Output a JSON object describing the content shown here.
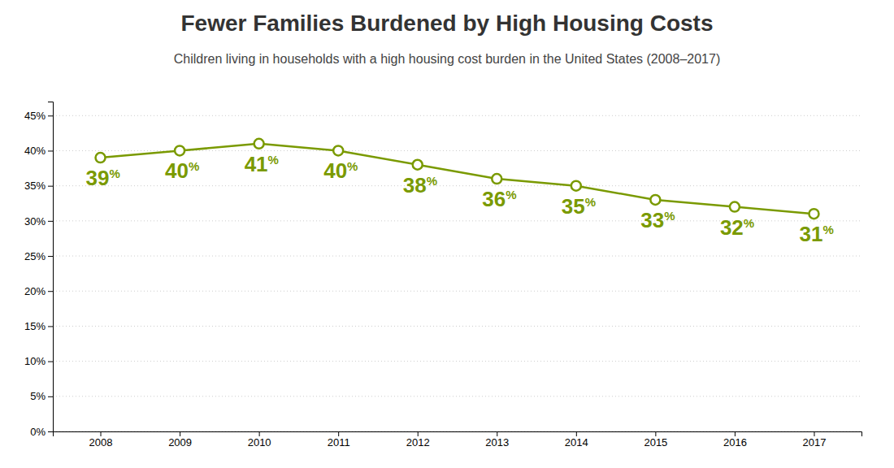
{
  "chart_data": {
    "type": "line",
    "title": "Fewer Families Burdened by High Housing Costs",
    "subtitle": "Children living in households with a high housing cost burden in the United States (2008–2017)",
    "x": [
      2008,
      2009,
      2010,
      2011,
      2012,
      2013,
      2014,
      2015,
      2016,
      2017
    ],
    "values": [
      39,
      40,
      41,
      40,
      38,
      36,
      35,
      33,
      32,
      31
    ],
    "value_labels": [
      "39%",
      "40%",
      "41%",
      "40%",
      "38%",
      "36%",
      "35%",
      "33%",
      "32%",
      "31%"
    ],
    "data_labels": true,
    "color": "#7a9a01",
    "marker": "circle",
    "xlim": [
      2007.4,
      2017.6
    ],
    "xticks": [
      2008,
      2009,
      2010,
      2011,
      2012,
      2013,
      2014,
      2015,
      2016,
      2017
    ],
    "ylim": [
      0,
      47
    ],
    "yticks": [
      {
        "value": 0,
        "label": "0%"
      },
      {
        "value": 5,
        "label": "5%"
      },
      {
        "value": 10,
        "label": "10%"
      },
      {
        "value": 15,
        "label": "15%"
      },
      {
        "value": 20,
        "label": "20%"
      },
      {
        "value": 25,
        "label": "25%"
      },
      {
        "value": 30,
        "label": "30%"
      },
      {
        "value": 35,
        "label": "35%"
      },
      {
        "value": 40,
        "label": "40%"
      },
      {
        "value": 45,
        "label": "45%"
      }
    ],
    "grid": true
  }
}
